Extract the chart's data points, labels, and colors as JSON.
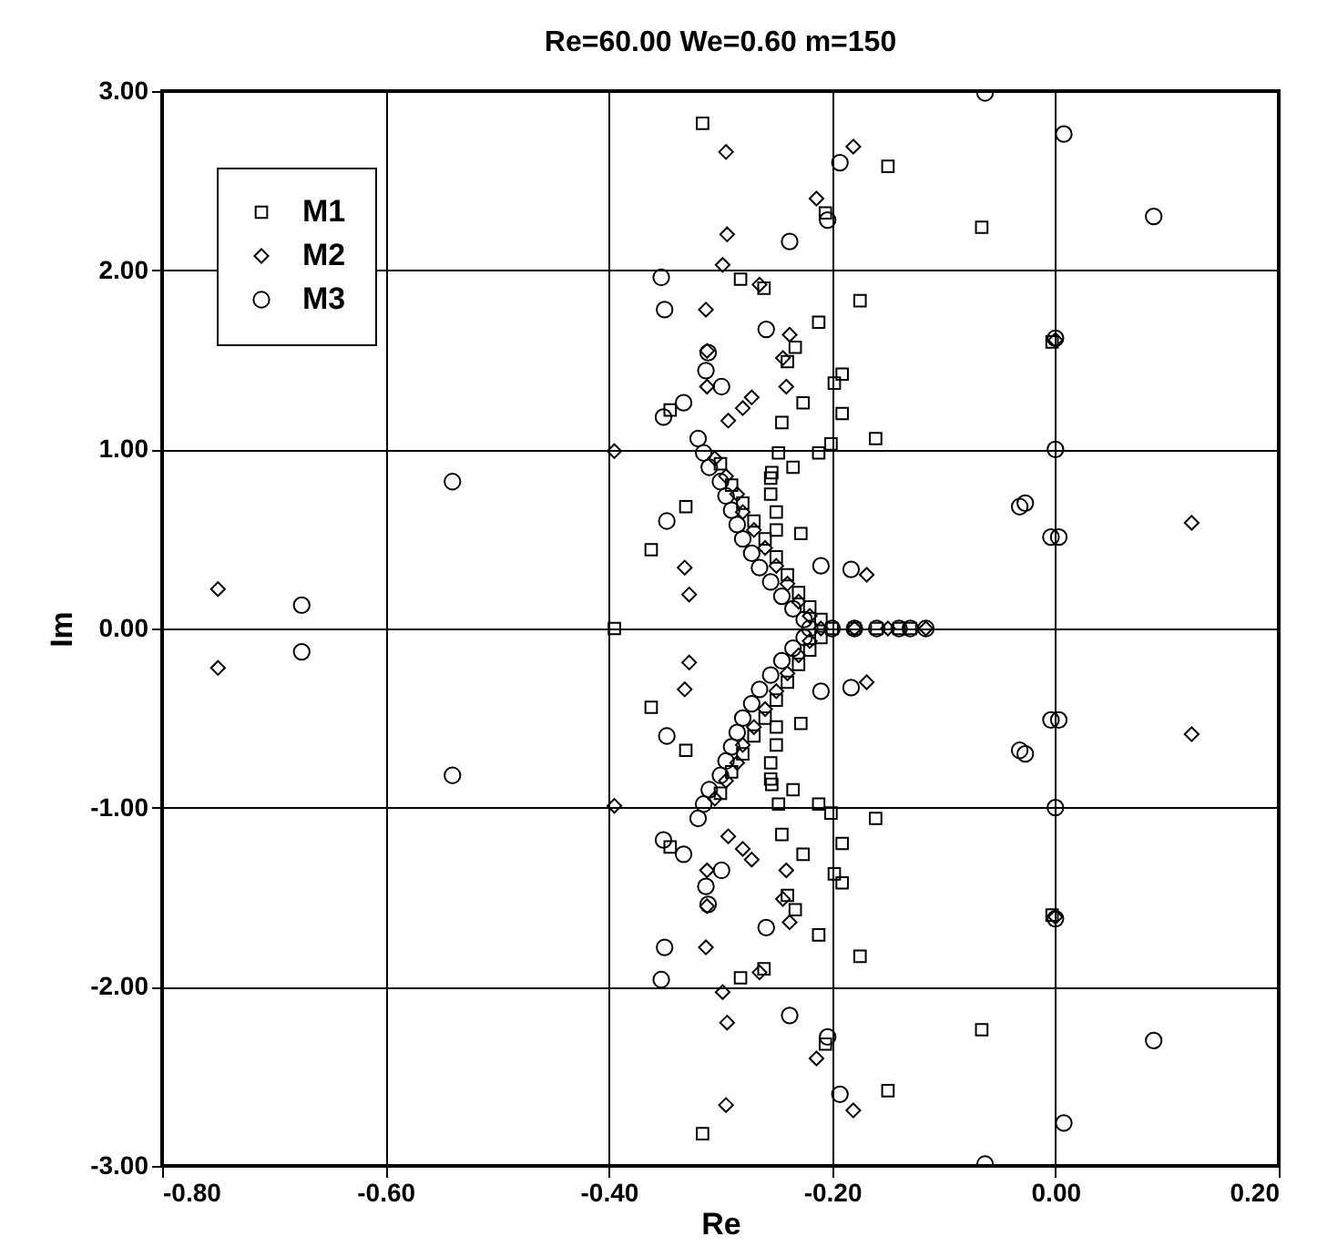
{
  "chart_data": {
    "type": "scatter",
    "title": "Re=60.00  We=0.60  m=150",
    "xlabel": "Re",
    "ylabel": "Im",
    "xlim": [
      -0.8,
      0.2
    ],
    "ylim": [
      -3,
      3
    ],
    "xticks": [
      {
        "value": -0.8,
        "label": "-0.80"
      },
      {
        "value": -0.6,
        "label": "-0.60"
      },
      {
        "value": -0.4,
        "label": "-0.40"
      },
      {
        "value": -0.2,
        "label": "-0.20"
      },
      {
        "value": 0,
        "label": "0.00"
      },
      {
        "value": 0.2,
        "label": "0.20"
      }
    ],
    "yticks": [
      {
        "value": -3,
        "label": "-3.00"
      },
      {
        "value": -2,
        "label": "-2.00"
      },
      {
        "value": -1,
        "label": "-1.00"
      },
      {
        "value": 0,
        "label": "0.00"
      },
      {
        "value": 1,
        "label": "1.00"
      },
      {
        "value": 2,
        "label": "2.00"
      },
      {
        "value": 3,
        "label": "3.00"
      }
    ],
    "grid": true,
    "legend": "top left",
    "series": [
      {
        "name": "M1",
        "color": "#000000",
        "marker": "square",
        "x": [
          -0.316,
          -0.15,
          -0.206,
          -0.066,
          -0.282,
          -0.261,
          -0.175,
          -0.212,
          -0.233,
          -0.24,
          -0.191,
          -0.198,
          -0.226,
          -0.191,
          -0.345,
          -0.245,
          -0.161,
          -0.201,
          -0.212,
          -0.248,
          -0.235,
          -0.254,
          -0.331,
          -0.362,
          -0.228,
          -0.003,
          -0.3,
          -0.29,
          -0.28,
          -0.27,
          -0.26,
          -0.25,
          -0.24,
          -0.23,
          -0.22,
          -0.21,
          -0.255,
          -0.255,
          -0.25,
          -0.25,
          -0.316,
          -0.15,
          -0.206,
          -0.066,
          -0.282,
          -0.261,
          -0.175,
          -0.212,
          -0.233,
          -0.24,
          -0.191,
          -0.198,
          -0.226,
          -0.191,
          -0.345,
          -0.245,
          -0.161,
          -0.201,
          -0.212,
          -0.248,
          -0.235,
          -0.254,
          -0.331,
          -0.362,
          -0.228,
          -0.003,
          -0.3,
          -0.29,
          -0.28,
          -0.27,
          -0.26,
          -0.25,
          -0.24,
          -0.23,
          -0.22,
          -0.21,
          -0.255,
          -0.255,
          -0.25,
          -0.25,
          -0.395,
          -0.2,
          -0.18,
          -0.16,
          -0.14,
          -0.13
        ],
        "values": [
          2.82,
          2.58,
          2.32,
          2.24,
          1.95,
          1.9,
          1.83,
          1.71,
          1.57,
          1.49,
          1.42,
          1.37,
          1.26,
          1.2,
          1.22,
          1.15,
          1.06,
          1.03,
          0.98,
          0.98,
          0.9,
          0.87,
          0.68,
          0.44,
          0.53,
          1.6,
          0.92,
          0.8,
          0.7,
          0.6,
          0.5,
          0.4,
          0.3,
          0.2,
          0.12,
          0.05,
          0.84,
          0.75,
          0.65,
          0.55,
          -2.82,
          -2.58,
          -2.32,
          -2.24,
          -1.95,
          -1.9,
          -1.83,
          -1.71,
          -1.57,
          -1.49,
          -1.42,
          -1.37,
          -1.26,
          -1.2,
          -1.22,
          -1.15,
          -1.06,
          -1.03,
          -0.98,
          -0.98,
          -0.9,
          -0.87,
          -0.68,
          -0.44,
          -0.53,
          -1.6,
          -0.92,
          -0.8,
          -0.7,
          -0.6,
          -0.5,
          -0.4,
          -0.3,
          -0.2,
          -0.12,
          -0.05,
          -0.84,
          -0.75,
          -0.65,
          -0.55,
          0,
          0,
          0,
          0,
          0,
          0
        ]
      },
      {
        "name": "M2",
        "color": "#000000",
        "marker": "diamond",
        "x": [
          -0.181,
          -0.295,
          -0.214,
          -0.294,
          -0.298,
          -0.265,
          -0.313,
          -0.238,
          -0.244,
          -0.312,
          -0.241,
          -0.312,
          -0.272,
          -0.28,
          -0.293,
          -0.395,
          -0.332,
          -0.328,
          -0.169,
          0,
          0.122,
          -0.75,
          -0.305,
          -0.295,
          -0.285,
          -0.28,
          -0.27,
          -0.26,
          -0.25,
          -0.24,
          -0.23,
          -0.22,
          -0.181,
          -0.295,
          -0.214,
          -0.294,
          -0.298,
          -0.265,
          -0.313,
          -0.238,
          -0.244,
          -0.312,
          -0.241,
          -0.312,
          -0.272,
          -0.28,
          -0.293,
          -0.395,
          -0.332,
          -0.328,
          -0.169,
          0,
          0.122,
          -0.75,
          -0.305,
          -0.295,
          -0.285,
          -0.28,
          -0.27,
          -0.26,
          -0.25,
          -0.24,
          -0.23,
          -0.22,
          -0.21,
          -0.18,
          -0.15,
          -0.116
        ],
        "values": [
          2.69,
          2.66,
          2.4,
          2.2,
          2.03,
          1.92,
          1.78,
          1.64,
          1.51,
          1.55,
          1.35,
          1.35,
          1.29,
          1.23,
          1.16,
          0.99,
          0.34,
          0.19,
          0.3,
          1.61,
          0.59,
          0.22,
          0.95,
          0.85,
          0.75,
          0.65,
          0.55,
          0.45,
          0.35,
          0.25,
          0.15,
          0.07,
          -2.69,
          -2.66,
          -2.4,
          -2.2,
          -2.03,
          -1.92,
          -1.78,
          -1.64,
          -1.51,
          -1.55,
          -1.35,
          -1.35,
          -1.29,
          -1.23,
          -1.16,
          -0.99,
          -0.34,
          -0.19,
          -0.3,
          -1.61,
          -0.59,
          -0.22,
          -0.95,
          -0.85,
          -0.75,
          -0.65,
          -0.55,
          -0.45,
          -0.35,
          -0.25,
          -0.15,
          -0.07,
          0,
          0,
          0,
          0
        ]
      },
      {
        "name": "M3",
        "color": "#000000",
        "marker": "circle",
        "x": [
          -0.063,
          0.0075,
          0.088,
          -0.193,
          -0.204,
          -0.238,
          -0.353,
          -0.35,
          -0.259,
          -0.311,
          -0.313,
          -0.299,
          -0.333,
          -0.351,
          -0.32,
          -0.348,
          -0.21,
          -0.183,
          0,
          0,
          -0.027,
          -0.032,
          -0.004,
          0.003,
          -0.675,
          -0.54,
          -0.315,
          -0.31,
          -0.3,
          -0.295,
          -0.29,
          -0.285,
          -0.28,
          -0.272,
          -0.265,
          -0.255,
          -0.245,
          -0.235,
          -0.225,
          -0.063,
          0.0075,
          0.088,
          -0.193,
          -0.204,
          -0.238,
          -0.353,
          -0.35,
          -0.259,
          -0.311,
          -0.313,
          -0.299,
          -0.333,
          -0.351,
          -0.32,
          -0.348,
          -0.21,
          -0.183,
          0,
          0,
          -0.027,
          -0.032,
          -0.004,
          0.003,
          -0.675,
          -0.54,
          -0.315,
          -0.31,
          -0.3,
          -0.295,
          -0.29,
          -0.285,
          -0.28,
          -0.272,
          -0.265,
          -0.255,
          -0.245,
          -0.235,
          -0.225,
          -0.22,
          -0.2,
          -0.18,
          -0.16,
          -0.14,
          -0.13,
          -0.116
        ],
        "values": [
          2.99,
          2.76,
          2.3,
          2.6,
          2.28,
          2.16,
          1.96,
          1.78,
          1.67,
          1.54,
          1.44,
          1.35,
          1.26,
          1.18,
          1.06,
          0.6,
          0.35,
          0.33,
          1.62,
          1,
          0.7,
          0.68,
          0.51,
          0.51,
          0.13,
          0.82,
          0.98,
          0.9,
          0.82,
          0.74,
          0.66,
          0.58,
          0.5,
          0.42,
          0.34,
          0.26,
          0.18,
          0.11,
          0.05,
          -2.99,
          -2.76,
          -2.3,
          -2.6,
          -2.28,
          -2.16,
          -1.96,
          -1.78,
          -1.67,
          -1.54,
          -1.44,
          -1.35,
          -1.26,
          -1.18,
          -1.06,
          -0.6,
          -0.35,
          -0.33,
          -1.62,
          -1,
          -0.7,
          -0.68,
          -0.51,
          -0.51,
          -0.13,
          -0.82,
          -0.98,
          -0.9,
          -0.82,
          -0.74,
          -0.66,
          -0.58,
          -0.5,
          -0.42,
          -0.34,
          -0.26,
          -0.18,
          -0.11,
          -0.05,
          0,
          0,
          0,
          0,
          0,
          0,
          0
        ]
      }
    ]
  }
}
